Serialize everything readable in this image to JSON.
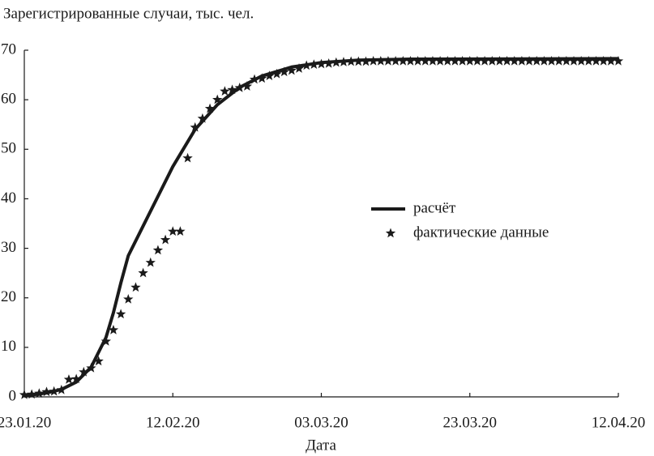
{
  "chart_data": {
    "type": "line",
    "title": "Зарегистрированные случаи, тыс. чел.",
    "x_label": "Дата",
    "xlim": [
      "23.01.20",
      "12.04.20"
    ],
    "xticks": [
      "23.01.20",
      "12.02.20",
      "03.03.20",
      "23.03.20",
      "12.04.20"
    ],
    "ylim": [
      0,
      70
    ],
    "yticks": [
      0,
      10,
      20,
      30,
      40,
      50,
      60,
      70
    ],
    "grid": false,
    "series": [
      {
        "name": "расчёт",
        "color": "#1a1a1a",
        "style": "line",
        "x": [
          "23.01.20",
          "26.01.20",
          "28.01.20",
          "30.01.20",
          "01.02.20",
          "03.02.20",
          "04.02.20",
          "05.02.20",
          "06.02.20",
          "08.02.20",
          "10.02.20",
          "12.02.20",
          "15.02.20",
          "18.02.20",
          "21.02.20",
          "24.02.20",
          "28.02.20",
          "03.03.20",
          "08.03.20",
          "15.03.20",
          "12.04.20"
        ],
        "values": [
          0.2,
          0.8,
          1.5,
          3.0,
          6.0,
          12.0,
          17.0,
          23.0,
          28.5,
          34.5,
          40.5,
          46.5,
          54.0,
          59.0,
          62.5,
          64.8,
          66.6,
          67.5,
          68.0,
          68.2,
          68.3
        ]
      },
      {
        "name": "фактические данные",
        "color": "#1a1a1a",
        "style": "star",
        "x": [
          "23.01.20",
          "24.01.20",
          "25.01.20",
          "26.01.20",
          "27.01.20",
          "28.01.20",
          "29.01.20",
          "30.01.20",
          "31.01.20",
          "01.02.20",
          "02.02.20",
          "03.02.20",
          "04.02.20",
          "05.02.20",
          "06.02.20",
          "07.02.20",
          "08.02.20",
          "09.02.20",
          "10.02.20",
          "11.02.20",
          "12.02.20",
          "13.02.20",
          "14.02.20",
          "15.02.20",
          "16.02.20",
          "17.02.20",
          "18.02.20",
          "19.02.20",
          "20.02.20",
          "21.02.20",
          "22.02.20",
          "23.02.20",
          "24.02.20",
          "25.02.20",
          "26.02.20",
          "27.02.20",
          "28.02.20",
          "29.02.20",
          "01.03.20",
          "02.03.20",
          "03.03.20",
          "04.03.20",
          "05.03.20",
          "06.03.20",
          "07.03.20",
          "08.03.20",
          "09.03.20",
          "10.03.20",
          "11.03.20",
          "12.03.20",
          "13.03.20",
          "14.03.20",
          "15.03.20",
          "16.03.20",
          "17.03.20",
          "18.03.20",
          "19.03.20",
          "20.03.20",
          "21.03.20",
          "22.03.20",
          "23.03.20",
          "24.03.20",
          "25.03.20",
          "26.03.20",
          "27.03.20",
          "28.03.20",
          "29.03.20",
          "30.03.20",
          "31.03.20",
          "01.04.20",
          "02.04.20",
          "03.04.20",
          "04.04.20",
          "05.04.20",
          "06.04.20",
          "07.04.20",
          "08.04.20",
          "09.04.20",
          "10.04.20",
          "11.04.20",
          "12.04.20"
        ],
        "values": [
          0.4,
          0.5,
          0.7,
          1.0,
          1.1,
          1.4,
          3.5,
          3.6,
          5.0,
          5.8,
          7.2,
          11.2,
          13.5,
          16.7,
          19.7,
          22.1,
          25.0,
          27.1,
          29.6,
          31.7,
          33.4,
          33.4,
          48.2,
          54.4,
          56.2,
          58.2,
          60.0,
          61.7,
          62.0,
          62.4,
          62.7,
          64.1,
          64.3,
          64.8,
          65.2,
          65.6,
          65.9,
          66.3,
          66.9,
          67.1,
          67.2,
          67.3,
          67.5,
          67.6,
          67.7,
          67.7,
          67.7,
          67.8,
          67.8,
          67.8,
          67.8,
          67.8,
          67.8,
          67.8,
          67.8,
          67.8,
          67.8,
          67.8,
          67.8,
          67.8,
          67.8,
          67.8,
          67.8,
          67.8,
          67.8,
          67.8,
          67.8,
          67.8,
          67.8,
          67.8,
          67.8,
          67.8,
          67.8,
          67.8,
          67.8,
          67.8,
          67.8,
          67.8,
          67.8,
          67.8,
          67.8
        ]
      }
    ]
  }
}
